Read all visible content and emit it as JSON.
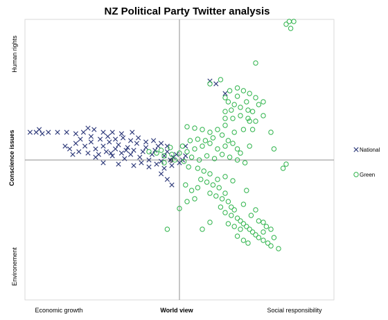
{
  "chart_data": {
    "type": "scatter",
    "title": "NZ Political Party Twitter analysis",
    "xlabel": "World view",
    "ylabel": "Conscience issues",
    "x_axis_end_labels": {
      "left": "Economic growth",
      "right": "Social responsibility"
    },
    "y_axis_end_labels": {
      "top": "Human rights",
      "bottom": "Environement"
    },
    "origin_label": "0",
    "xlim": [
      -1,
      1
    ],
    "ylim": [
      -1,
      1
    ],
    "grid": false,
    "legend_position": "right",
    "series": [
      {
        "name": "National",
        "marker": "x",
        "color": "#2f3a7a",
        "points": [
          [
            -0.98,
            0.2
          ],
          [
            -0.94,
            0.2
          ],
          [
            -0.9,
            0.19
          ],
          [
            -0.86,
            0.2
          ],
          [
            -0.8,
            0.2
          ],
          [
            -0.74,
            0.2
          ],
          [
            -0.68,
            0.19
          ],
          [
            -0.63,
            0.2
          ],
          [
            -0.56,
            0.22
          ],
          [
            -0.5,
            0.2
          ],
          [
            -0.44,
            0.2
          ],
          [
            -0.38,
            0.19
          ],
          [
            -0.31,
            0.2
          ],
          [
            -0.6,
            0.23
          ],
          [
            -0.92,
            0.22
          ],
          [
            -0.75,
            0.1
          ],
          [
            -0.72,
            0.08
          ],
          [
            -0.68,
            0.12
          ],
          [
            -0.66,
            0.06
          ],
          [
            -0.62,
            0.1
          ],
          [
            -0.6,
            0.05
          ],
          [
            -0.58,
            0.13
          ],
          [
            -0.55,
            0.08
          ],
          [
            -0.53,
            0.04
          ],
          [
            -0.5,
            0.1
          ],
          [
            -0.48,
            0.06
          ],
          [
            -0.46,
            0.13
          ],
          [
            -0.44,
            0.03
          ],
          [
            -0.42,
            0.08
          ],
          [
            -0.4,
            0.11
          ],
          [
            -0.38,
            0.05
          ],
          [
            -0.36,
            0.01
          ],
          [
            -0.34,
            0.09
          ],
          [
            -0.32,
            0.04
          ],
          [
            -0.3,
            0.07
          ],
          [
            -0.28,
            0.12
          ],
          [
            -0.26,
            0.02
          ],
          [
            -0.24,
            0.06
          ],
          [
            -0.22,
            0.09
          ],
          [
            -0.2,
            0.0
          ],
          [
            -0.18,
            0.04
          ],
          [
            -0.16,
            0.07
          ],
          [
            -0.14,
            0.1
          ],
          [
            -0.12,
            -0.01
          ],
          [
            -0.1,
            0.03
          ],
          [
            -0.08,
            0.06
          ],
          [
            -0.06,
            0.0
          ],
          [
            -0.04,
            0.02
          ],
          [
            -0.02,
            0.04
          ],
          [
            0.0,
            -0.02
          ],
          [
            0.02,
            0.0
          ],
          [
            0.04,
            0.03
          ],
          [
            -0.55,
            0.02
          ],
          [
            -0.5,
            -0.02
          ],
          [
            -0.45,
            0.05
          ],
          [
            -0.4,
            -0.03
          ],
          [
            -0.35,
            0.07
          ],
          [
            -0.3,
            -0.04
          ],
          [
            -0.25,
            -0.02
          ],
          [
            -0.2,
            -0.05
          ],
          [
            -0.15,
            -0.03
          ],
          [
            -0.1,
            -0.06
          ],
          [
            -0.05,
            -0.04
          ],
          [
            -0.7,
            0.04
          ],
          [
            -0.65,
            0.15
          ],
          [
            -0.58,
            0.17
          ],
          [
            -0.52,
            0.15
          ],
          [
            -0.47,
            0.17
          ],
          [
            -0.42,
            0.15
          ],
          [
            -0.37,
            0.16
          ],
          [
            -0.32,
            0.14
          ],
          [
            -0.27,
            0.16
          ],
          [
            -0.22,
            0.13
          ],
          [
            -0.17,
            0.14
          ],
          [
            -0.12,
            0.12
          ],
          [
            -0.08,
            0.1
          ],
          [
            -0.12,
            -0.1
          ],
          [
            -0.08,
            -0.14
          ],
          [
            -0.05,
            -0.18
          ],
          [
            0.2,
            0.57
          ],
          [
            0.24,
            0.55
          ],
          [
            0.3,
            0.48
          ],
          [
            0.04,
            0.1
          ]
        ]
      },
      {
        "name": "Green",
        "marker": "o",
        "color": "#2db34a",
        "points": [
          [
            0.72,
            1.0
          ],
          [
            0.75,
            1.0
          ],
          [
            0.7,
            0.98
          ],
          [
            0.73,
            0.95
          ],
          [
            0.5,
            0.7
          ],
          [
            0.2,
            0.55
          ],
          [
            0.27,
            0.58
          ],
          [
            0.33,
            0.5
          ],
          [
            0.38,
            0.52
          ],
          [
            0.42,
            0.5
          ],
          [
            0.46,
            0.48
          ],
          [
            0.5,
            0.45
          ],
          [
            0.55,
            0.42
          ],
          [
            0.32,
            0.42
          ],
          [
            0.36,
            0.4
          ],
          [
            0.4,
            0.38
          ],
          [
            0.45,
            0.36
          ],
          [
            0.52,
            0.4
          ],
          [
            0.3,
            0.35
          ],
          [
            0.35,
            0.3
          ],
          [
            0.4,
            0.32
          ],
          [
            0.45,
            0.3
          ],
          [
            0.5,
            0.28
          ],
          [
            0.48,
            0.22
          ],
          [
            0.3,
            0.25
          ],
          [
            0.25,
            0.22
          ],
          [
            0.2,
            0.2
          ],
          [
            0.15,
            0.22
          ],
          [
            0.1,
            0.23
          ],
          [
            0.05,
            0.24
          ],
          [
            0.28,
            0.18
          ],
          [
            0.62,
            0.08
          ],
          [
            0.68,
            -0.06
          ],
          [
            0.7,
            -0.03
          ],
          [
            0.6,
            0.2
          ],
          [
            0.55,
            0.32
          ],
          [
            0.38,
            0.46
          ],
          [
            0.3,
            0.45
          ],
          [
            0.46,
            0.1
          ],
          [
            0.4,
            0.05
          ],
          [
            0.38,
            0.08
          ],
          [
            0.35,
            0.12
          ],
          [
            0.3,
            0.1
          ],
          [
            0.25,
            0.08
          ],
          [
            0.2,
            0.12
          ],
          [
            0.15,
            0.1
          ],
          [
            0.1,
            0.08
          ],
          [
            0.05,
            0.06
          ],
          [
            0.0,
            0.05
          ],
          [
            -0.05,
            0.04
          ],
          [
            -0.1,
            0.03
          ],
          [
            -0.15,
            0.05
          ],
          [
            -0.2,
            0.06
          ],
          [
            -0.03,
            0.0
          ],
          [
            0.03,
            -0.01
          ],
          [
            0.08,
            0.02
          ],
          [
            0.13,
            0.0
          ],
          [
            0.18,
            0.03
          ],
          [
            0.23,
            0.01
          ],
          [
            0.28,
            0.04
          ],
          [
            0.33,
            0.02
          ],
          [
            0.38,
            0.0
          ],
          [
            0.43,
            -0.02
          ],
          [
            0.06,
            -0.05
          ],
          [
            0.12,
            -0.06
          ],
          [
            0.16,
            -0.08
          ],
          [
            0.2,
            -0.1
          ],
          [
            0.14,
            -0.14
          ],
          [
            0.18,
            -0.16
          ],
          [
            0.22,
            -0.18
          ],
          [
            0.26,
            -0.2
          ],
          [
            0.2,
            -0.24
          ],
          [
            0.24,
            -0.26
          ],
          [
            0.28,
            -0.28
          ],
          [
            0.3,
            -0.24
          ],
          [
            0.32,
            -0.3
          ],
          [
            0.34,
            -0.34
          ],
          [
            0.36,
            -0.36
          ],
          [
            0.3,
            -0.38
          ],
          [
            0.34,
            -0.4
          ],
          [
            0.38,
            -0.42
          ],
          [
            0.4,
            -0.44
          ],
          [
            0.42,
            -0.46
          ],
          [
            0.44,
            -0.48
          ],
          [
            0.46,
            -0.5
          ],
          [
            0.48,
            -0.52
          ],
          [
            0.5,
            -0.54
          ],
          [
            0.52,
            -0.56
          ],
          [
            0.55,
            -0.58
          ],
          [
            0.58,
            -0.6
          ],
          [
            0.6,
            -0.62
          ],
          [
            0.62,
            -0.56
          ],
          [
            0.65,
            -0.64
          ],
          [
            0.4,
            -0.5
          ],
          [
            0.36,
            -0.48
          ],
          [
            0.38,
            -0.55
          ],
          [
            0.42,
            -0.58
          ],
          [
            0.45,
            -0.6
          ],
          [
            0.55,
            -0.52
          ],
          [
            0.57,
            -0.48
          ],
          [
            0.6,
            -0.5
          ],
          [
            0.32,
            -0.46
          ],
          [
            0.12,
            -0.2
          ],
          [
            0.08,
            -0.22
          ],
          [
            0.04,
            -0.18
          ],
          [
            0.2,
            -0.45
          ],
          [
            0.15,
            -0.5
          ],
          [
            -0.08,
            -0.5
          ],
          [
            0.0,
            -0.35
          ],
          [
            0.05,
            -0.3
          ],
          [
            0.1,
            -0.28
          ],
          [
            0.27,
            -0.34
          ],
          [
            0.25,
            -0.14
          ],
          [
            0.3,
            -0.12
          ],
          [
            0.35,
            -0.15
          ],
          [
            0.42,
            -0.32
          ],
          [
            0.47,
            -0.4
          ],
          [
            0.52,
            -0.44
          ],
          [
            0.55,
            -0.45
          ],
          [
            0.5,
            -0.36
          ],
          [
            0.44,
            -0.22
          ],
          [
            -0.1,
            -0.02
          ],
          [
            -0.12,
            0.07
          ],
          [
            -0.06,
            0.09
          ],
          [
            0.02,
            0.1
          ],
          [
            0.07,
            0.14
          ],
          [
            0.12,
            0.15
          ],
          [
            0.17,
            0.14
          ],
          [
            0.22,
            0.16
          ],
          [
            0.32,
            0.14
          ],
          [
            0.36,
            0.2
          ],
          [
            0.42,
            0.22
          ],
          [
            0.46,
            0.28
          ],
          [
            0.48,
            0.35
          ],
          [
            0.44,
            0.42
          ],
          [
            0.34,
            0.36
          ],
          [
            0.3,
            0.3
          ]
        ]
      }
    ]
  }
}
